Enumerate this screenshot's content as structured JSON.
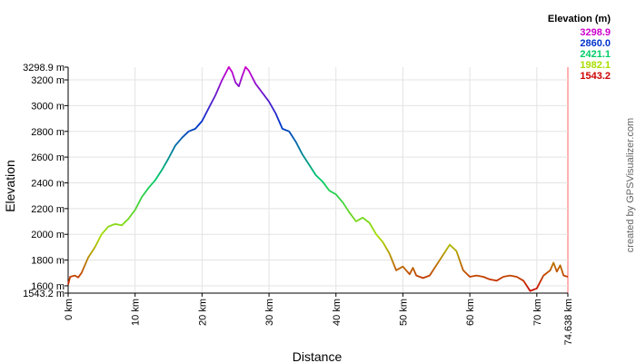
{
  "chart_data": {
    "type": "line",
    "xlabel": "Distance",
    "ylabel": "Elevation",
    "x_unit": "km",
    "y_unit": "m",
    "xlim": [
      0,
      74.638
    ],
    "ylim": [
      1543.2,
      3298.9
    ],
    "x_ticks": [
      {
        "value": 0,
        "label": "0 km"
      },
      {
        "value": 10,
        "label": "10 km"
      },
      {
        "value": 20,
        "label": "20 km"
      },
      {
        "value": 30,
        "label": "30 km"
      },
      {
        "value": 40,
        "label": "40 km"
      },
      {
        "value": 50,
        "label": "50 km"
      },
      {
        "value": 60,
        "label": "60 km"
      },
      {
        "value": 70,
        "label": "70 km"
      },
      {
        "value": 74.638,
        "label": "74.638 km"
      }
    ],
    "y_ticks": [
      {
        "value": 1543.2,
        "label": "1543.2 m"
      },
      {
        "value": 1600,
        "label": "1600 m"
      },
      {
        "value": 1800,
        "label": "1800 m"
      },
      {
        "value": 2000,
        "label": "2000 m"
      },
      {
        "value": 2200,
        "label": "2200 m"
      },
      {
        "value": 2400,
        "label": "2400 m"
      },
      {
        "value": 2600,
        "label": "2600 m"
      },
      {
        "value": 2800,
        "label": "2800 m"
      },
      {
        "value": 3000,
        "label": "3000 m"
      },
      {
        "value": 3200,
        "label": "3200 m"
      },
      {
        "value": 3298.9,
        "label": "3298.9 m"
      }
    ],
    "grid": true,
    "color_scale": {
      "title": "Elevation (m)",
      "stops": [
        {
          "label": "3298.9",
          "value": 3298.9,
          "color": "#cc00cc"
        },
        {
          "label": "2860.0",
          "value": 2860.0,
          "color": "#0033cc"
        },
        {
          "label": "2421.1",
          "value": 2421.1,
          "color": "#00cc66"
        },
        {
          "label": "1982.1",
          "value": 1982.1,
          "color": "#aadd00"
        },
        {
          "label": "1543.2",
          "value": 1543.2,
          "color": "#cc0000"
        }
      ]
    },
    "series": [
      {
        "x": [
          0,
          0.3,
          1,
          1.5,
          2,
          2.5,
          3,
          4,
          5,
          6,
          7,
          8,
          9,
          10,
          11,
          12,
          13,
          14,
          15,
          16,
          17,
          18,
          19,
          20,
          21,
          22,
          23,
          24,
          24.5,
          25,
          25.5,
          26,
          26.5,
          27,
          28,
          29,
          30,
          31,
          32,
          33,
          34,
          35,
          36,
          37,
          38,
          39,
          40,
          41,
          42,
          43,
          44,
          45,
          46,
          47,
          48,
          49,
          50,
          51,
          51.5,
          52,
          53,
          54,
          55,
          56,
          57,
          58,
          59,
          60,
          61,
          62,
          63,
          64,
          65,
          66,
          67,
          68,
          69,
          70,
          71,
          72,
          72.5,
          73,
          73.5,
          74,
          74.638
        ],
        "y": [
          1610,
          1670,
          1680,
          1665,
          1700,
          1760,
          1820,
          1900,
          2000,
          2060,
          2080,
          2070,
          2120,
          2190,
          2290,
          2360,
          2420,
          2500,
          2590,
          2690,
          2750,
          2800,
          2820,
          2880,
          2980,
          3080,
          3200,
          3300,
          3260,
          3180,
          3150,
          3230,
          3300,
          3270,
          3170,
          3100,
          3030,
          2940,
          2820,
          2800,
          2720,
          2620,
          2540,
          2460,
          2410,
          2340,
          2310,
          2250,
          2170,
          2100,
          2130,
          2090,
          2000,
          1940,
          1850,
          1720,
          1750,
          1690,
          1740,
          1680,
          1660,
          1680,
          1760,
          1840,
          1920,
          1870,
          1720,
          1670,
          1680,
          1670,
          1650,
          1640,
          1670,
          1680,
          1670,
          1640,
          1560,
          1580,
          1680,
          1720,
          1780,
          1710,
          1760,
          1680,
          1670
        ]
      }
    ],
    "credit": "created by GPSVisualizer.com"
  }
}
